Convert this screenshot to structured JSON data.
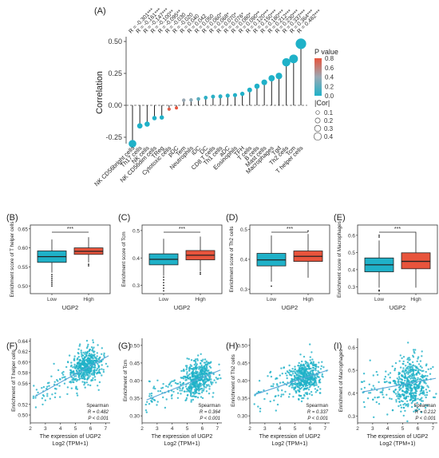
{
  "colors": {
    "teal": "#1fb1c8",
    "red": "#e8543c",
    "orange": "#ee8866",
    "axis": "#333333",
    "pvalue_gradient": [
      "#1fb1c8",
      "#9aa9b4",
      "#e8543c"
    ]
  },
  "chart_data": [
    {
      "type": "scatter",
      "panel": "(A)",
      "style": "lollipop",
      "ylabel": "Correlation",
      "ylim": [
        -0.3,
        0.5
      ],
      "yticks": [
        "0.50",
        "0.25",
        "0.00",
        "-0.25"
      ],
      "ytick_values": [
        0.5,
        0.25,
        0.0,
        -0.25
      ],
      "categories": [
        "NK CD56bright cells",
        "Th17 cells",
        "NK cells",
        "NK CD56dim cells",
        "TReg",
        "Cytotoxic cells",
        "pDC",
        "Tem",
        "Neutrophils",
        "iDC",
        "DC",
        "CD8 T cells",
        "Th1 cells",
        "aDC",
        "Eosinophils",
        "TFH",
        "T cells",
        "B cells",
        "Mast cells",
        "Macrophages",
        "Tgd",
        "Th2 cells",
        "Tcm",
        "T helper cells"
      ],
      "values": [
        -0.301,
        -0.161,
        -0.147,
        -0.1,
        -0.095,
        -0.03,
        -0.02,
        0.04,
        0.042,
        0.05,
        0.06,
        0.068,
        0.07,
        0.076,
        0.08,
        0.09,
        0.12,
        0.15,
        0.18,
        0.212,
        0.23,
        0.337,
        0.364,
        0.482
      ],
      "r_labels": [
        "R = -0.301***",
        "R = -0.161***",
        "R = -0.147***",
        "R = -0.100**",
        "R = -0.095**",
        "R = -0.030",
        "R = -0.020",
        "R = 0.040",
        "R = 0.042",
        "R = 0.050",
        "R = 0.060*",
        "R = 0.068*",
        "R = 0.070*",
        "R = 0.076*",
        "R = 0.080*",
        "R = 0.090**",
        "R = 0.120***",
        "R = 0.150***",
        "R = 0.180***",
        "R = 0.212***",
        "R = 0.230***",
        "R = 0.337***",
        "R = 0.364***",
        "R = 0.482***"
      ],
      "p_values": [
        0.0,
        0.0,
        0.0,
        0.005,
        0.005,
        0.75,
        0.82,
        0.4,
        0.35,
        0.2,
        0.05,
        0.04,
        0.03,
        0.02,
        0.01,
        0.005,
        0.0,
        0.0,
        0.0,
        0.0,
        0.0,
        0.0,
        0.0,
        0.0
      ],
      "legend_pvalue_title": "P value",
      "legend_pvalue_ticks": [
        "0.8",
        "0.6",
        "0.4",
        "0.2",
        "0.0"
      ],
      "legend_pvalue_tick_values": [
        0.8,
        0.6,
        0.4,
        0.2,
        0.0
      ],
      "legend_cor_title": "|Cor|",
      "legend_cor_labels": [
        "0.1",
        "0.2",
        "0.3",
        "0.4"
      ],
      "legend_cor_values": [
        0.1,
        0.2,
        0.3,
        0.4
      ],
      "legend_placement": "right"
    },
    {
      "type": "box",
      "panel": "(B)",
      "ylabel": "Enrichment score of T helper cells",
      "xlabel": "UGP2",
      "categories": [
        "Low",
        "High"
      ],
      "significance": "***",
      "ylim": [
        0.48,
        0.66
      ],
      "yticks": [
        "0.50",
        "0.55",
        "0.60",
        "0.65"
      ],
      "ytick_values": [
        0.5,
        0.55,
        0.6,
        0.65
      ],
      "boxes": [
        {
          "category": "Low",
          "min": 0.535,
          "q1": 0.562,
          "median": 0.577,
          "q3": 0.592,
          "max": 0.622,
          "outliers": [
            0.53,
            0.525,
            0.52,
            0.515,
            0.51,
            0.505,
            0.5
          ]
        },
        {
          "category": "High",
          "min": 0.562,
          "q1": 0.583,
          "median": 0.591,
          "q3": 0.6,
          "max": 0.628,
          "outliers": [
            0.557,
            0.553
          ]
        }
      ]
    },
    {
      "type": "box",
      "panel": "(C)",
      "ylabel": "Enrichment score of Tcm",
      "xlabel": "UGP2",
      "categories": [
        "Low",
        "High"
      ],
      "significance": "***",
      "ylim": [
        0.27,
        0.52
      ],
      "yticks": [
        "0.3",
        "0.4",
        "0.5"
      ],
      "ytick_values": [
        0.3,
        0.4,
        0.5
      ],
      "boxes": [
        {
          "category": "Low",
          "min": 0.335,
          "q1": 0.375,
          "median": 0.395,
          "q3": 0.415,
          "max": 0.47,
          "outliers": [
            0.33,
            0.32,
            0.31,
            0.3,
            0.29,
            0.28
          ]
        },
        {
          "category": "High",
          "min": 0.352,
          "q1": 0.393,
          "median": 0.41,
          "q3": 0.427,
          "max": 0.478,
          "outliers": [
            0.347,
            0.341
          ]
        }
      ]
    },
    {
      "type": "box",
      "panel": "(D)",
      "ylabel": "Enrichment score of Th2 cells",
      "xlabel": "UGP2",
      "categories": [
        "Low",
        "High"
      ],
      "significance": "***",
      "ylim": [
        0.285,
        0.515
      ],
      "yticks": [
        "0.3",
        "0.4",
        "0.5"
      ],
      "ytick_values": [
        0.3,
        0.4,
        0.5
      ],
      "boxes": [
        {
          "category": "Low",
          "min": 0.325,
          "q1": 0.378,
          "median": 0.398,
          "q3": 0.42,
          "max": 0.48,
          "outliers": [
            0.31
          ]
        },
        {
          "category": "High",
          "min": 0.338,
          "q1": 0.393,
          "median": 0.41,
          "q3": 0.428,
          "max": 0.485,
          "outliers": [
            0.495
          ]
        }
      ]
    },
    {
      "type": "box",
      "panel": "(E)",
      "ylabel": "Enrichment score of Macrophages",
      "xlabel": "UGP2",
      "categories": [
        "Low",
        "High"
      ],
      "significance": "***",
      "ylim": [
        0.26,
        0.66
      ],
      "yticks": [
        "0.3",
        "0.4",
        "0.5",
        "0.6"
      ],
      "ytick_values": [
        0.3,
        0.4,
        0.5,
        0.6
      ],
      "boxes": [
        {
          "category": "Low",
          "min": 0.295,
          "q1": 0.387,
          "median": 0.428,
          "q3": 0.468,
          "max": 0.57,
          "outliers": [
            0.6,
            0.59,
            0.28,
            0.275
          ]
        },
        {
          "category": "High",
          "min": 0.295,
          "q1": 0.405,
          "median": 0.448,
          "q3": 0.498,
          "max": 0.62,
          "outliers": []
        }
      ]
    },
    {
      "type": "scatter",
      "panel": "(F)",
      "ylabel": "Enrichment of T helper cells",
      "xlabel": "The expression of UGP2",
      "xlabel2": "Log2 (TPM+1)",
      "xlim": [
        2,
        7.3
      ],
      "ylim": [
        0.485,
        0.645
      ],
      "xticks": [
        "2",
        "3",
        "4",
        "5",
        "6",
        "7"
      ],
      "xtick_values": [
        2,
        3,
        4,
        5,
        6,
        7
      ],
      "yticks": [
        "0.50",
        "0.52",
        "0.56",
        "0.58",
        "0.60",
        "0.62",
        "0.64"
      ],
      "ytick_values": [
        0.5,
        0.52,
        0.56,
        0.58,
        0.6,
        0.62,
        0.64
      ],
      "fit": {
        "x": [
          2.3,
          7.2
        ],
        "y": [
          0.535,
          0.612
        ]
      },
      "cloud": {
        "center_x": 5.7,
        "center_y": 0.592,
        "sd_x": 0.5,
        "sd_y": 0.016,
        "n": 520
      },
      "stats_method": "Spearman",
      "stats_r": "R = 0.482",
      "stats_p": "P < 0.001"
    },
    {
      "type": "scatter",
      "panel": "(G)",
      "ylabel": "Enrichment of Tcm",
      "xlabel": "The expression of UGP2",
      "xlabel2": "Log2 (TPM+1)",
      "xlim": [
        2,
        7.3
      ],
      "ylim": [
        0.28,
        0.52
      ],
      "xticks": [
        "2",
        "3",
        "4",
        "5",
        "6",
        "7"
      ],
      "xtick_values": [
        2,
        3,
        4,
        5,
        6,
        7
      ],
      "yticks": [
        "0.30",
        "0.35",
        "0.40",
        "0.45",
        "0.50"
      ],
      "ytick_values": [
        0.3,
        0.35,
        0.4,
        0.45,
        0.5
      ],
      "fit": {
        "x": [
          2.3,
          7.2
        ],
        "y": [
          0.345,
          0.43
        ]
      },
      "cloud": {
        "center_x": 5.7,
        "center_y": 0.405,
        "sd_x": 0.5,
        "sd_y": 0.025,
        "n": 520
      },
      "stats_method": "Spearman",
      "stats_r": "R = 0.364",
      "stats_p": "P < 0.001"
    },
    {
      "type": "scatter",
      "panel": "(H)",
      "ylabel": "Enrichment of Th2 cells",
      "xlabel": "The expression of UGP2",
      "xlabel2": "Log2 (TPM+1)",
      "xlim": [
        2,
        7.3
      ],
      "ylim": [
        0.28,
        0.52
      ],
      "xticks": [
        "2",
        "3",
        "4",
        "5",
        "6",
        "7"
      ],
      "xtick_values": [
        2,
        3,
        4,
        5,
        6,
        7
      ],
      "yticks": [
        "0.30",
        "0.35",
        "0.40",
        "0.45",
        "0.50"
      ],
      "ytick_values": [
        0.3,
        0.35,
        0.4,
        0.45,
        0.5
      ],
      "fit": {
        "x": [
          2.3,
          7.2
        ],
        "y": [
          0.36,
          0.43
        ]
      },
      "cloud": {
        "center_x": 5.7,
        "center_y": 0.41,
        "sd_x": 0.5,
        "sd_y": 0.025,
        "n": 520
      },
      "stats_method": "Spearman",
      "stats_r": "R = 0.337",
      "stats_p": "P < 0.001"
    },
    {
      "type": "scatter",
      "panel": "(I)",
      "ylabel": "Enrichment of Macrophages",
      "xlabel": "The expression of UGP2",
      "xlabel2": "Log2 (TPM+1)",
      "xlim": [
        2,
        7.3
      ],
      "ylim": [
        0.27,
        0.64
      ],
      "xticks": [
        "2",
        "3",
        "4",
        "5",
        "6",
        "7"
      ],
      "xtick_values": [
        2,
        3,
        4,
        5,
        6,
        7
      ],
      "yticks": [
        "0.3",
        "0.4",
        "0.5",
        "0.6"
      ],
      "ytick_values": [
        0.3,
        0.4,
        0.5,
        0.6
      ],
      "fit": {
        "x": [
          2.3,
          7.2
        ],
        "y": [
          0.405,
          0.465
        ]
      },
      "cloud": {
        "center_x": 5.6,
        "center_y": 0.44,
        "sd_x": 0.55,
        "sd_y": 0.055,
        "n": 520
      },
      "stats_method": "Spearman",
      "stats_r": "R = 0.212",
      "stats_p": "P < 0.001"
    }
  ]
}
